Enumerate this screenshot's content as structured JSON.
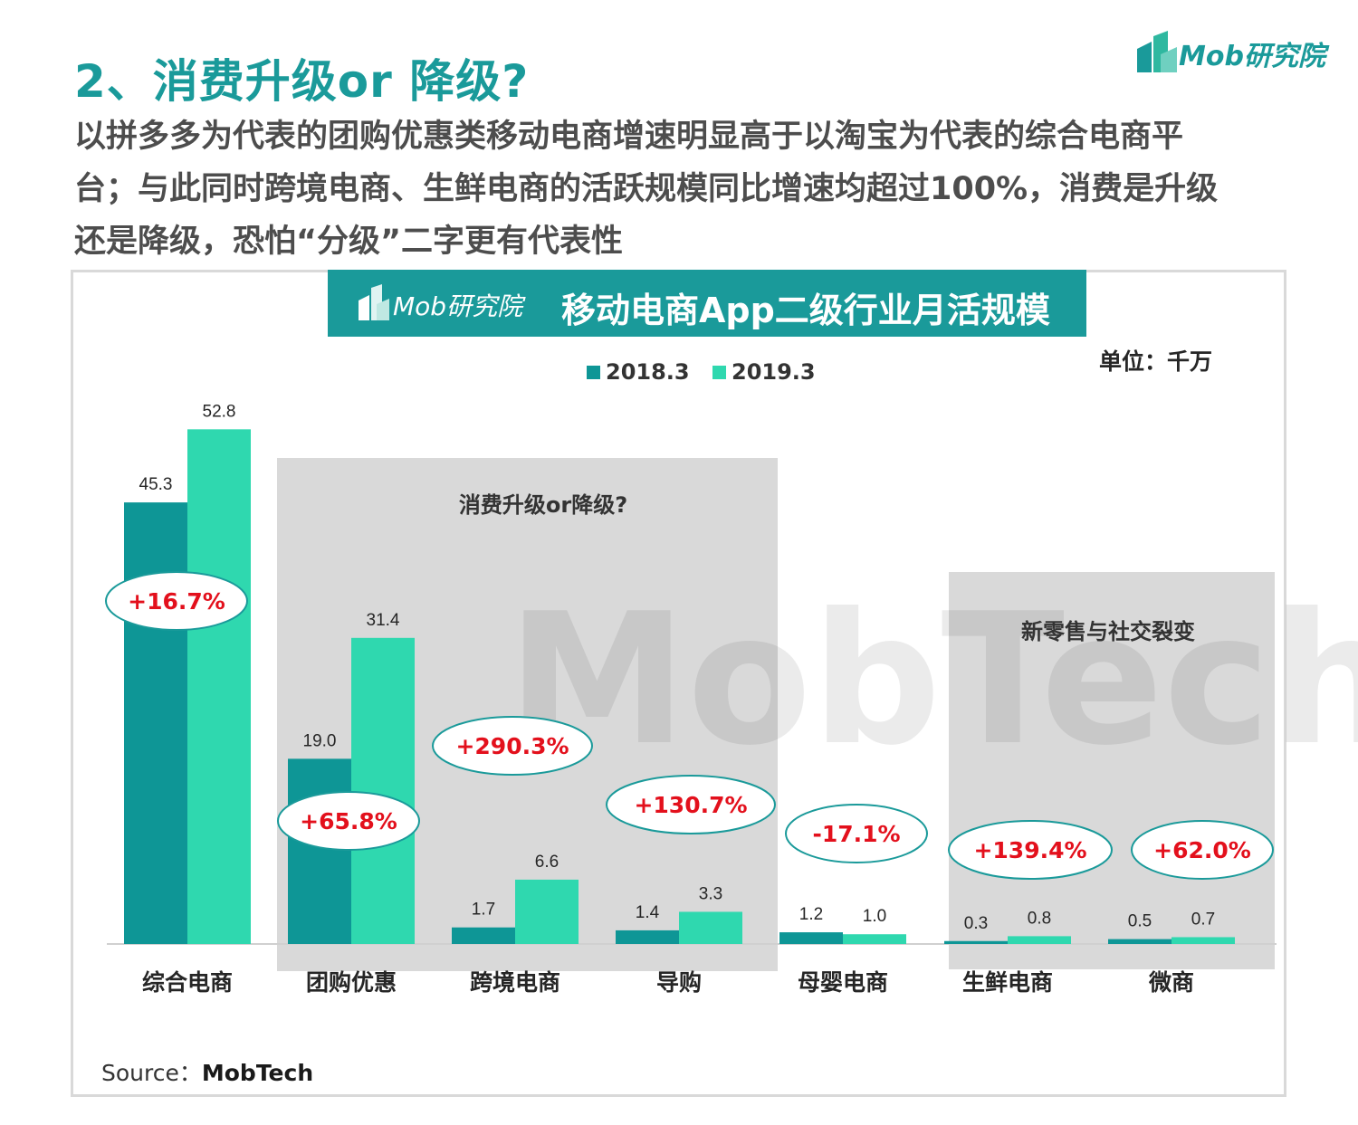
{
  "header": {
    "title": "2、消费升级or 降级?",
    "lines": [
      "以拼多多为代表的团购优惠类移动电商增速明显高于以淘宝为代表的综合电商平",
      "台；与此同时跨境电商、生鲜电商的活跃规模同比增速均超过100%，消费是升级",
      "还是降级，恐怕“分级”二字更有代表性"
    ],
    "logo_text": "Mob研究院"
  },
  "chart_header": {
    "logo_text": "Mob研究院",
    "title": "移动电商App二级行业月活规模"
  },
  "unit": "单位：千万",
  "source_label": "Source：",
  "source_value": "MobTech",
  "watermark": "MobTech",
  "colors": {
    "teal_dark": "#0e9696",
    "teal_light": "#2fd8af",
    "title_teal": "#1a9a9a",
    "growth_red": "#e3101c",
    "panel_grey": "#d9d9d9"
  },
  "chart_data": {
    "type": "bar",
    "categories": [
      "综合电商",
      "团购优惠",
      "跨境电商",
      "导购",
      "母婴电商",
      "生鲜电商",
      "微商"
    ],
    "series": [
      {
        "name": "2018.3",
        "values": [
          45.3,
          19.0,
          1.7,
          1.4,
          1.2,
          0.3,
          0.5
        ],
        "labels": [
          "45.3",
          "19.0",
          "1.7",
          "1.4",
          "1.2",
          "0.3",
          "0.5"
        ]
      },
      {
        "name": "2019.3",
        "values": [
          52.8,
          31.4,
          6.6,
          3.3,
          1.0,
          0.8,
          0.7
        ],
        "labels": [
          "52.8",
          "31.4",
          "6.6",
          "3.3",
          "1.0",
          "0.8",
          "0.7"
        ]
      }
    ],
    "growth": [
      "+16.7%",
      "+65.8%",
      "+290.3%",
      "+130.7%",
      "-17.1%",
      "+139.4%",
      "+62.0%"
    ],
    "groups": [
      {
        "label": "消费升级or降级?",
        "categories": [
          "团购优惠",
          "跨境电商",
          "导购"
        ]
      },
      {
        "label": "新零售与社交裂变",
        "categories": [
          "生鲜电商",
          "微商"
        ]
      }
    ],
    "ylim": [
      0,
      60
    ],
    "legend": "top-center",
    "grid": false
  }
}
